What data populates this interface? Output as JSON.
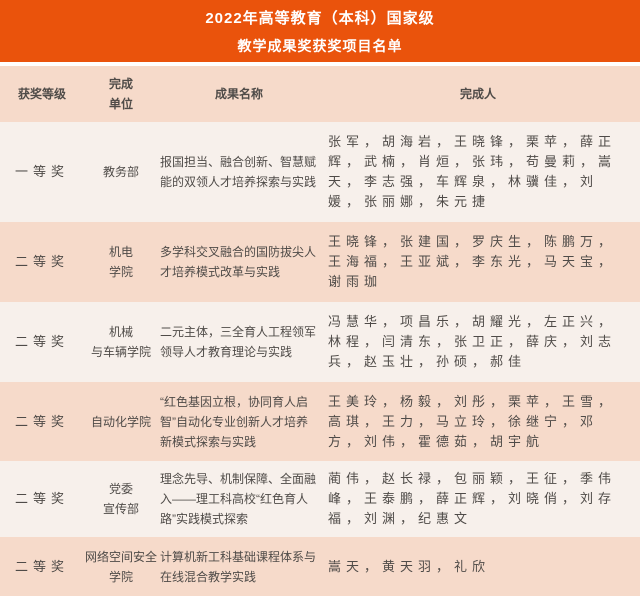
{
  "banner": {
    "title_line1": "2022年高等教育（本科）国家级",
    "title_line2": "教学成果奖获奖项目名单"
  },
  "colors": {
    "banner_bg": "#EA530C",
    "banner_text": "#FFFFFF",
    "row_peach": "#F6DACA",
    "row_light": "#F7F0EB",
    "body_text": "#4F4B48"
  },
  "table": {
    "columns": [
      {
        "label": "获奖等级"
      },
      {
        "label": "完成\n单位"
      },
      {
        "label": "成果名称"
      },
      {
        "label": "完成人"
      }
    ],
    "rows": [
      {
        "award": "一等奖",
        "unit": "教务部",
        "achievement": "报国担当、融合创新、智慧赋能的双领人才培养探索与实践",
        "people": "张军，胡海岩，王晓锋，栗苹，薛正辉，武楠，肖烜，张玮，苟曼莉，嵩天，李志强，车辉泉，林骥佳，刘媛，张丽娜，朱元捷"
      },
      {
        "award": "二等奖",
        "unit": "机电\n学院",
        "achievement": "多学科交叉融合的国防拔尖人才培养模式改革与实践",
        "people": "王晓锋，张建国，罗庆生，陈鹏万，王海福，王亚斌，李东光，马天宝，谢雨珈"
      },
      {
        "award": "二等奖",
        "unit": "机械\n与车辆学院",
        "achievement": "二元主体，三全育人工程领军领导人才教育理论与实践",
        "people": "冯慧华，项昌乐，胡耀光，左正兴，林程，闫清东，张卫正，薛庆，刘志兵，赵玉壮，孙硕，郝佳"
      },
      {
        "award": "二等奖",
        "unit": "自动化学院",
        "achievement": "“红色基因立根，协同育人启智”自动化专业创新人才培养新模式探索与实践",
        "people": "王美玲，杨毅，刘彤，栗苹，王雪，高琪，王力，马立玲，徐继宁，邓方，刘伟，霍德茹，胡宇航"
      },
      {
        "award": "二等奖",
        "unit": "党委\n宣传部",
        "achievement": "理念先导、机制保障、全面融入——理工科高校“红色育人路”实践模式探索",
        "people": "蔺伟，赵长禄，包丽颖，王征，季伟峰，王泰鹏，薛正辉，刘晓俏，刘存福，刘渊，纪惠文"
      },
      {
        "award": "二等奖",
        "unit": "网络空间安全\n学院",
        "achievement": "计算机新工科基础课程体系与在线混合教学实践",
        "people": "嵩天，黄天羽，礼欣"
      }
    ]
  }
}
